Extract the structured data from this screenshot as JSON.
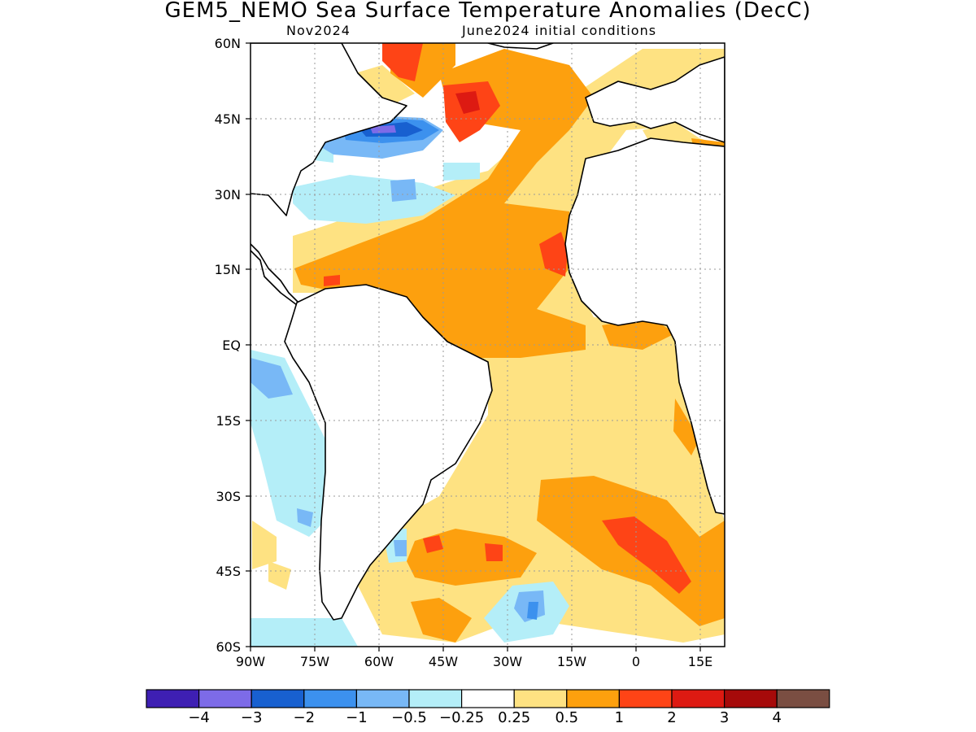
{
  "title": "GEM5_NEMO Sea Surface Temperature Anomalies (DecC)",
  "subtitle_left": "Nov2024",
  "subtitle_right": "June2024 initial conditions",
  "map": {
    "projection": "lat-lon",
    "lon_range": [
      -90,
      20
    ],
    "lat_range": [
      -60,
      60
    ],
    "lat_ticks": [
      {
        "value": 60,
        "label": "60N"
      },
      {
        "value": 45,
        "label": "45N"
      },
      {
        "value": 30,
        "label": "30N"
      },
      {
        "value": 15,
        "label": "15N"
      },
      {
        "value": 0,
        "label": "EQ"
      },
      {
        "value": -15,
        "label": "15S"
      },
      {
        "value": -30,
        "label": "30S"
      },
      {
        "value": -45,
        "label": "45S"
      },
      {
        "value": -60,
        "label": "60S"
      }
    ],
    "lon_ticks": [
      {
        "value": -90,
        "label": "90W"
      },
      {
        "value": -75,
        "label": "75W"
      },
      {
        "value": -60,
        "label": "60W"
      },
      {
        "value": -45,
        "label": "45W"
      },
      {
        "value": -30,
        "label": "30W"
      },
      {
        "value": -15,
        "label": "15W"
      },
      {
        "value": 0,
        "label": "0"
      },
      {
        "value": 15,
        "label": "15E"
      }
    ],
    "grid": "dotted"
  },
  "colorbar": {
    "colors": [
      "#3e1fb3",
      "#7d6be8",
      "#1860d0",
      "#3c91ee",
      "#78b8f6",
      "#b4eef8",
      "#ffffff",
      "#fee282",
      "#fda00e",
      "#fe4416",
      "#dd1a12",
      "#a60a0a",
      "#7a4e42"
    ],
    "labels": [
      "-4",
      "-3",
      "-2",
      "-1",
      "-0.5",
      "-0.25",
      "0.25",
      "0.5",
      "1",
      "2",
      "3",
      "4"
    ]
  }
}
